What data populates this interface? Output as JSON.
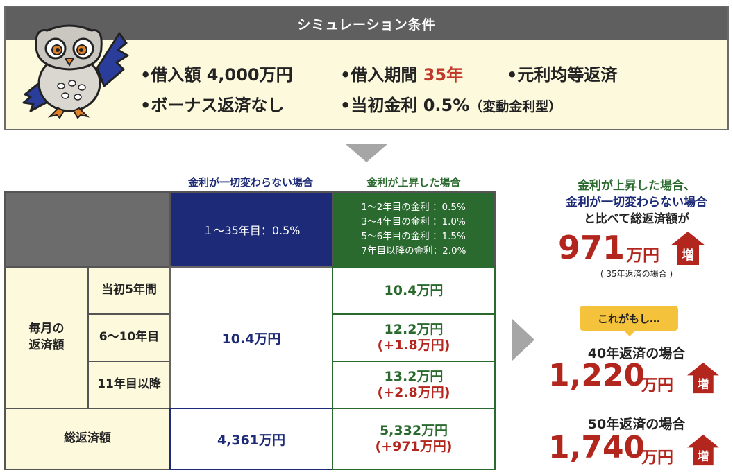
{
  "conditions": {
    "title": "シミュレーション条件",
    "loan_amount": "•借入額 4,000万円",
    "term_prefix": "•借入期間 ",
    "term_value": "35年",
    "repayment": "•元利均等返済",
    "bonus": "•ボーナス返済なし",
    "rate_main": "•当初金利 0.5%",
    "rate_note": "（変動金利型）"
  },
  "table": {
    "col_fixed": "金利が一切変わらない場合",
    "col_rising": "金利が上昇した場合",
    "fixed_rate": "１～35年目：0.5%",
    "rising_rates": [
      "1～2年目の金利 ：0.5%",
      "3～4年目の金利 ：1.0%",
      "5～6年目の金利 ：1.5%",
      "7年目以降の金利：2.0%"
    ],
    "row_group_label_1": "毎月の",
    "row_group_label_2": "返済額",
    "rows": [
      {
        "label": "当初5年間",
        "rising": "10.4万円",
        "diff": ""
      },
      {
        "label": "6～10年目",
        "rising": "12.2万円",
        "diff": "(+1.8万円)"
      },
      {
        "label": "11年目以降",
        "rising": "13.2万円",
        "diff": "(+2.8万円)"
      }
    ],
    "fixed_monthly": "10.4万円",
    "total_label": "総返済額",
    "total_fixed": "4,361万円",
    "total_rising": "5,332万円",
    "total_diff": "(+971万円)"
  },
  "summary": {
    "line1": "金利が上昇した場合、",
    "line2": "金利が一切変わらない場合",
    "line3": "と比べて総返済額が",
    "amount_35": "971",
    "unit": "万円",
    "increase_label": "増",
    "note_35": "( 35年返済の場合 )",
    "bubble": "これがもし…",
    "case_40": "40年返済の場合",
    "amount_40": "1,220",
    "case_50": "50年返済の場合",
    "amount_50": "1,740"
  },
  "colors": {
    "navy": "#1c2a78",
    "green": "#2a6a2f",
    "red": "#b3261e",
    "beige": "#fdf9dd",
    "gray": "#6c6c6c",
    "yellow": "#f5c33b"
  },
  "icons": [
    "owl-mascot-icon",
    "down-arrow-icon",
    "right-arrow-icon",
    "increase-house-icon"
  ]
}
